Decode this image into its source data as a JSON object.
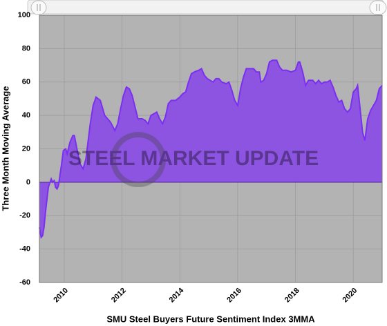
{
  "chart_data": {
    "type": "area",
    "title": "SMU Steel Buyers Future Sentiment Index 3MMA",
    "y_label": "Three Month Moving Average",
    "watermark": "STEEL MARKET UPDATE",
    "x": [
      2009.14,
      2009.2,
      2009.25,
      2009.3,
      2009.35,
      2009.45,
      2009.55,
      2009.6,
      2009.65,
      2009.7,
      2009.75,
      2009.8,
      2009.9,
      2009.97,
      2010.05,
      2010.1,
      2010.2,
      2010.3,
      2010.35,
      2010.45,
      2010.55,
      2010.65,
      2010.75,
      2010.9,
      2011.0,
      2011.1,
      2011.25,
      2011.4,
      2011.6,
      2011.75,
      2011.85,
      2011.95,
      2012.05,
      2012.15,
      2012.25,
      2012.35,
      2012.45,
      2012.55,
      2012.7,
      2012.8,
      2012.9,
      2013.0,
      2013.1,
      2013.2,
      2013.3,
      2013.4,
      2013.5,
      2013.6,
      2013.7,
      2013.85,
      2014.0,
      2014.1,
      2014.2,
      2014.3,
      2014.4,
      2014.5,
      2014.65,
      2014.75,
      2014.85,
      2014.95,
      2015.05,
      2015.15,
      2015.25,
      2015.35,
      2015.45,
      2015.6,
      2015.7,
      2015.8,
      2015.9,
      2016.0,
      2016.1,
      2016.2,
      2016.3,
      2016.45,
      2016.55,
      2016.65,
      2016.75,
      2016.8,
      2016.9,
      2017.0,
      2017.1,
      2017.2,
      2017.35,
      2017.45,
      2017.55,
      2017.7,
      2017.85,
      2018.0,
      2018.1,
      2018.15,
      2018.25,
      2018.35,
      2018.45,
      2018.6,
      2018.7,
      2018.8,
      2018.9,
      2019.0,
      2019.1,
      2019.2,
      2019.3,
      2019.4,
      2019.5,
      2019.6,
      2019.7,
      2019.8,
      2019.9,
      2020.0,
      2020.1,
      2020.15,
      2020.25,
      2020.32,
      2020.4,
      2020.5,
      2020.6,
      2020.7,
      2020.8,
      2020.9,
      2021.0
    ],
    "series": [
      {
        "name": "Three Month Moving Average",
        "color": "#7b2ff0",
        "fill": "#8a4fe3",
        "values": [
          -27,
          -33,
          -32,
          -27,
          -18,
          -3,
          2,
          0,
          1,
          -3,
          -4,
          -2,
          10,
          19,
          20,
          17,
          24,
          28,
          28,
          19,
          11,
          8,
          14,
          35,
          46,
          51,
          49,
          40,
          36,
          31,
          35,
          44,
          52,
          57,
          56,
          52,
          45,
          38,
          38,
          37,
          35,
          40,
          41,
          42,
          38,
          35,
          39,
          47,
          49,
          49,
          51,
          53,
          54,
          60,
          65,
          66,
          67,
          68,
          64,
          62,
          61,
          60,
          62,
          62,
          60,
          59,
          60,
          55,
          49,
          46,
          56,
          63,
          68,
          68,
          68,
          66,
          66,
          60,
          61,
          65,
          72,
          73,
          73,
          69,
          67,
          67,
          66,
          67,
          72,
          72,
          66,
          58,
          61,
          61,
          59,
          61,
          59,
          60,
          60,
          61,
          57,
          52,
          48,
          49,
          44,
          42,
          44,
          54,
          56,
          58,
          42,
          30,
          25,
          38,
          43,
          46,
          49,
          56,
          58
        ]
      }
    ],
    "xlim": [
      2009.14,
      2021.0
    ],
    "ylim": [
      -60,
      100
    ],
    "xticks": [
      2010,
      2012,
      2014,
      2016,
      2018,
      2020
    ],
    "yticks": [
      -60,
      -40,
      -20,
      0,
      20,
      40,
      60,
      80,
      100
    ],
    "grid": true,
    "plot_background": "#b3b3b3"
  }
}
